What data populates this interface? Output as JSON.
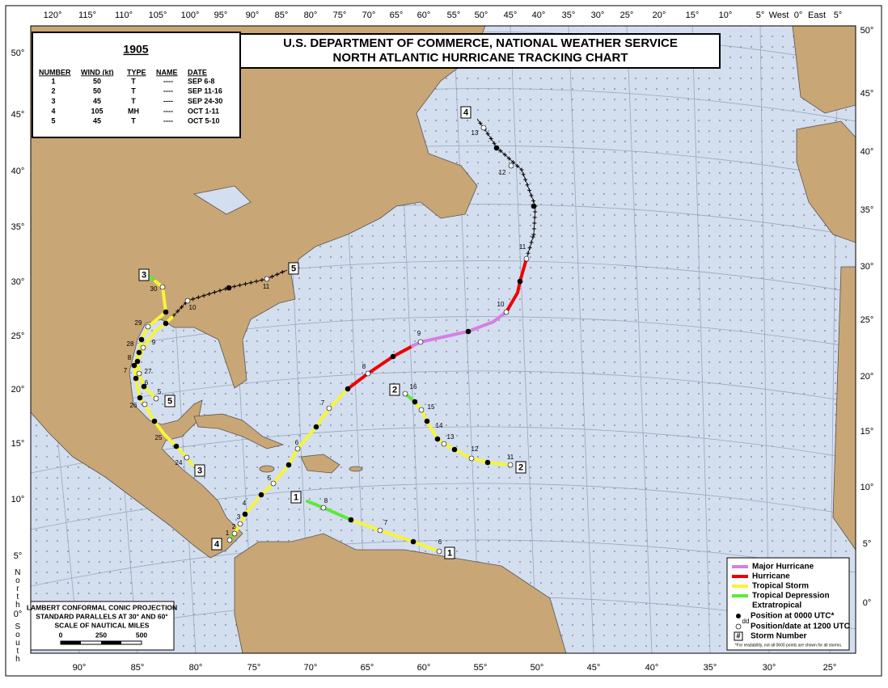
{
  "header": {
    "title_line1": "U.S. DEPARTMENT OF COMMERCE, NATIONAL WEATHER SERVICE",
    "title_line2": "NORTH ATLANTIC HURRICANE TRACKING CHART"
  },
  "summary_table": {
    "year": "1905",
    "columns": [
      "NUMBER",
      "WIND (kt)",
      "TYPE",
      "NAME",
      "DATE"
    ],
    "rows": [
      [
        "1",
        "50",
        "T",
        "----",
        "SEP 6-8"
      ],
      [
        "2",
        "50",
        "T",
        "----",
        "SEP 11-16"
      ],
      [
        "3",
        "45",
        "T",
        "----",
        "SEP 24-30"
      ],
      [
        "4",
        "105",
        "MH",
        "----",
        "OCT 1-11"
      ],
      [
        "5",
        "45",
        "T",
        "----",
        "OCT 5-10"
      ]
    ]
  },
  "axes": {
    "top_longitudes": [
      "120°",
      "115°",
      "110°",
      "105°",
      "100°",
      "95°",
      "90°",
      "85°",
      "80°",
      "75°",
      "70°",
      "65°",
      "60°",
      "55°",
      "50°",
      "45°",
      "40°",
      "35°",
      "30°",
      "25°",
      "20°",
      "15°",
      "10°",
      "5°",
      "West",
      "0°",
      "East",
      "5°"
    ],
    "bottom_longitudes": [
      "90°",
      "85°",
      "80°",
      "75°",
      "70°",
      "65°",
      "60°",
      "55°",
      "50°",
      "45°",
      "40°",
      "35°",
      "30°",
      "25°"
    ],
    "left_latitudes": [
      "50°",
      "45°",
      "40°",
      "35°",
      "30°",
      "25°",
      "20°",
      "15°",
      "10°",
      "5°",
      "0°"
    ],
    "right_latitudes": [
      "50°",
      "45°",
      "40°",
      "35°",
      "30°",
      "25°",
      "20°",
      "15°",
      "10°",
      "5°",
      "0°"
    ],
    "hemisphere_labels": [
      "North",
      "South"
    ]
  },
  "storms": [
    {
      "number": "1",
      "date_labels": [
        "6",
        "7",
        "8"
      ]
    },
    {
      "number": "2",
      "date_labels": [
        "11",
        "12",
        "13",
        "14",
        "15",
        "16"
      ]
    },
    {
      "number": "3",
      "date_labels": [
        "30",
        "29",
        "28",
        "27",
        "26",
        "25",
        "24"
      ]
    },
    {
      "number": "4",
      "date_labels": [
        "1",
        "2",
        "3",
        "4",
        "5",
        "6",
        "7",
        "8",
        "9",
        "10",
        "11",
        "12",
        "13"
      ]
    },
    {
      "number": "5",
      "date_labels": [
        "5",
        "6",
        "7",
        "8",
        "9",
        "10",
        "11"
      ]
    }
  ],
  "legend": {
    "entries": [
      "Major Hurricane",
      "Hurricane",
      "Tropical Storm",
      "Tropical Depression",
      "Extratropical",
      "Position at 0000 UTC*",
      "Position/date at 1200 UTC",
      "Storm Number"
    ],
    "dd": "dd",
    "number_symbol": "#",
    "footnote": "*For readability, not all 0600 points are shown for all storms."
  },
  "projection": {
    "lines": [
      "LAMBERT CONFORMAL CONIC PROJECTION",
      "STANDARD PARALLELS AT 30° AND 60°",
      "SCALE OF NAUTICAL MILES"
    ],
    "scale_labels": [
      "0",
      "250",
      "500"
    ]
  }
}
